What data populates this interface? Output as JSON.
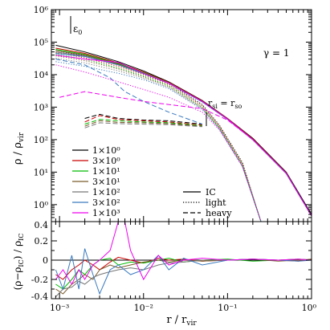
{
  "chart_data": [
    {
      "type": "line",
      "panel": "top",
      "xscale": "log",
      "yscale": "log",
      "xlim": [
        0.0008,
        1.0
      ],
      "ylim": [
        0.3,
        1000000
      ],
      "ylabel_main": "ρ / ρ",
      "ylabel_sub": "vir",
      "x_ticks": [
        "10⁻³",
        "10⁻²",
        "10⁻¹",
        "10⁰"
      ],
      "y_ticks": [
        "10⁰",
        "10¹",
        "10²",
        "10³",
        "10⁴",
        "10⁵",
        "10⁶"
      ],
      "annotations": {
        "epsilon": "ε",
        "epsilon_sub": "0",
        "gamma": "γ = 1",
        "r_si_main": "r",
        "r_si_sub": "si",
        "r_so_eq": " = r",
        "r_so_sub": "so"
      },
      "legend_series": [
        {
          "label": "1×10⁰",
          "color": "#000000"
        },
        {
          "label": "3×10⁰",
          "color": "#cc0000"
        },
        {
          "label": "1×10¹",
          "color": "#00bb00"
        },
        {
          "label": "3×10¹",
          "color": "#7a5a2a"
        },
        {
          "label": "1×10²",
          "color": "#777777"
        },
        {
          "label": "3×10²",
          "color": "#3a7abf"
        },
        {
          "label": "1×10³",
          "color": "#ee00ee"
        }
      ],
      "legend_styles": [
        {
          "label": "IC",
          "dash": "solid"
        },
        {
          "label": "light",
          "dash": "dotted"
        },
        {
          "label": "heavy",
          "dash": "dashed"
        }
      ],
      "series": [
        {
          "name": "1×10⁰",
          "style": "solid",
          "color": "#000000",
          "x": [
            0.0009,
            0.002,
            0.005,
            0.01,
            0.02,
            0.05,
            0.1,
            0.2,
            0.5,
            1.0
          ],
          "y": [
            80000,
            50000,
            25000,
            13000,
            6000,
            1600,
            450,
            110,
            10,
            0.5
          ]
        },
        {
          "name": "1×10⁰",
          "style": "dotted",
          "color": "#000000",
          "x": [
            0.0009,
            0.002,
            0.005,
            0.01,
            0.02,
            0.05,
            0.08,
            0.15,
            0.25
          ],
          "y": [
            55000,
            38000,
            20000,
            11000,
            5500,
            1200,
            280,
            20,
            0.3
          ]
        },
        {
          "name": "1×10⁰",
          "style": "dashed",
          "color": "#000000",
          "x": [
            0.002,
            0.003,
            0.005,
            0.01,
            0.02,
            0.05
          ],
          "y": [
            450,
            600,
            450,
            400,
            380,
            300
          ]
        },
        {
          "name": "3×10⁰",
          "style": "solid",
          "color": "#cc0000",
          "x": [
            0.0009,
            0.002,
            0.005,
            0.01,
            0.02,
            0.05,
            0.1,
            0.2,
            0.5,
            1.0
          ],
          "y": [
            65000,
            45000,
            23000,
            12000,
            5800,
            1550,
            440,
            105,
            9.5,
            0.45
          ]
        },
        {
          "name": "3×10⁰",
          "style": "dotted",
          "color": "#cc0000",
          "x": [
            0.0009,
            0.002,
            0.005,
            0.01,
            0.02,
            0.05,
            0.08,
            0.15,
            0.25
          ],
          "y": [
            48000,
            33000,
            18000,
            10000,
            5000,
            1100,
            260,
            18,
            0.3
          ]
        },
        {
          "name": "3×10⁰",
          "style": "dashed",
          "color": "#cc0000",
          "x": [
            0.002,
            0.003,
            0.005,
            0.01,
            0.02,
            0.05
          ],
          "y": [
            350,
            550,
            420,
            380,
            350,
            280
          ]
        },
        {
          "name": "1×10¹",
          "style": "solid",
          "color": "#00bb00",
          "x": [
            0.0009,
            0.002,
            0.005,
            0.01,
            0.02,
            0.05,
            0.1,
            0.2,
            0.5,
            1.0
          ],
          "y": [
            60000,
            42000,
            22000,
            11500,
            5600,
            1500,
            430,
            100,
            9.2,
            0.45
          ]
        },
        {
          "name": "1×10¹",
          "style": "dotted",
          "color": "#00bb00",
          "x": [
            0.0009,
            0.002,
            0.005,
            0.01,
            0.02,
            0.05,
            0.08,
            0.15,
            0.25
          ],
          "y": [
            42000,
            30000,
            16000,
            9000,
            4600,
            1000,
            240,
            17,
            0.3
          ]
        },
        {
          "name": "1×10¹",
          "style": "dashed",
          "color": "#00bb00",
          "x": [
            0.002,
            0.003,
            0.005,
            0.01,
            0.02,
            0.05
          ],
          "y": [
            300,
            420,
            380,
            350,
            330,
            270
          ]
        },
        {
          "name": "3×10¹",
          "style": "solid",
          "color": "#7a5a2a",
          "x": [
            0.0009,
            0.002,
            0.005,
            0.01,
            0.02,
            0.05,
            0.1,
            0.2,
            0.5,
            1.0
          ],
          "y": [
            55000,
            40000,
            21000,
            11000,
            5500,
            1480,
            425,
            100,
            9.0,
            0.45
          ]
        },
        {
          "name": "3×10¹",
          "style": "dotted",
          "color": "#7a5a2a",
          "x": [
            0.0009,
            0.002,
            0.005,
            0.01,
            0.02,
            0.05,
            0.08,
            0.15,
            0.25
          ],
          "y": [
            38000,
            27000,
            15000,
            8500,
            4300,
            950,
            230,
            16,
            0.3
          ]
        },
        {
          "name": "3×10¹",
          "style": "dashed",
          "color": "#7a5a2a",
          "x": [
            0.002,
            0.003,
            0.005,
            0.01,
            0.02,
            0.05
          ],
          "y": [
            260,
            380,
            340,
            330,
            310,
            260
          ]
        },
        {
          "name": "1×10²",
          "style": "solid",
          "color": "#777777",
          "x": [
            0.0009,
            0.002,
            0.005,
            0.01,
            0.02,
            0.05,
            0.1,
            0.2,
            0.5,
            1.0
          ],
          "y": [
            50000,
            37000,
            20000,
            10800,
            5400,
            1460,
            420,
            98,
            9.0,
            0.45
          ]
        },
        {
          "name": "1×10²",
          "style": "dotted",
          "color": "#777777",
          "x": [
            0.0009,
            0.002,
            0.005,
            0.01,
            0.02,
            0.05,
            0.08,
            0.15,
            0.25
          ],
          "y": [
            32000,
            23000,
            13000,
            7800,
            4000,
            900,
            220,
            15,
            0.3
          ]
        },
        {
          "name": "1×10²",
          "style": "dashed",
          "color": "#777777",
          "x": [
            0.002,
            0.003,
            0.005,
            0.01,
            0.02,
            0.05
          ],
          "y": [
            230,
            330,
            310,
            300,
            290,
            250
          ]
        },
        {
          "name": "3×10²",
          "style": "solid",
          "color": "#3a7abf",
          "x": [
            0.0009,
            0.002,
            0.005,
            0.01,
            0.02,
            0.05,
            0.1,
            0.2,
            0.5,
            1.0
          ],
          "y": [
            45000,
            36000,
            20000,
            10700,
            5400,
            1450,
            420,
            98,
            9.0,
            0.45
          ]
        },
        {
          "name": "3×10²",
          "style": "dotted",
          "color": "#3a7abf",
          "x": [
            0.0009,
            0.002,
            0.005,
            0.01,
            0.02,
            0.05,
            0.08,
            0.15,
            0.25
          ],
          "y": [
            25000,
            18000,
            11000,
            7000,
            3700,
            850,
            210,
            15,
            0.3
          ]
        },
        {
          "name": "3×10²",
          "style": "dashed",
          "color": "#3a7abf",
          "x": [
            0.0009,
            0.002,
            0.004,
            0.006,
            0.01,
            0.02,
            0.05
          ],
          "y": [
            30000,
            20000,
            8000,
            3000,
            1500,
            700,
            300
          ]
        },
        {
          "name": "1×10³",
          "style": "solid",
          "color": "#ee00ee",
          "x": [
            0.0009,
            0.002,
            0.005,
            0.01,
            0.02,
            0.05,
            0.1,
            0.2,
            0.5,
            1.0
          ],
          "y": [
            40000,
            30000,
            24000,
            11000,
            5500,
            1500,
            430,
            100,
            9.2,
            0.45
          ]
        },
        {
          "name": "1×10³",
          "style": "dotted",
          "color": "#ee00ee",
          "x": [
            0.0009,
            0.002,
            0.005,
            0.01,
            0.02,
            0.05,
            0.08,
            0.15,
            0.25
          ],
          "y": [
            20000,
            12000,
            6000,
            3500,
            2000,
            700,
            200,
            15,
            0.3
          ]
        },
        {
          "name": "1×10³",
          "style": "dashed",
          "color": "#ee00ee",
          "x": [
            0.001,
            0.002,
            0.003,
            0.005,
            0.01,
            0.02,
            0.05,
            0.1,
            0.2
          ],
          "y": [
            2000,
            3000,
            2500,
            2000,
            1500,
            1200,
            900,
            400,
            100
          ]
        }
      ]
    },
    {
      "type": "line",
      "panel": "bottom",
      "xscale": "log",
      "xlim": [
        0.0008,
        1.0
      ],
      "ylim": [
        -0.4,
        0.4
      ],
      "xlabel_main": "r / r",
      "xlabel_sub": "vir",
      "ylabel_main": "(ρ−ρ",
      "ylabel_sub": "IC",
      "ylabel_rest": ") / ρ",
      "ylabel_sub2": "IC",
      "x_ticks": [
        "10⁻³",
        "10⁻²",
        "10⁻¹",
        "10⁰"
      ],
      "y_ticks": [
        "-0.4",
        "-0.2",
        "0",
        "0.2",
        "0.4"
      ],
      "series": [
        {
          "name": "3×10⁰",
          "color": "#cc0000",
          "x": [
            0.0009,
            0.0011,
            0.0014,
            0.0017,
            0.002,
            0.0025,
            0.003,
            0.004,
            0.005,
            0.007,
            0.01,
            0.015,
            0.02,
            0.03,
            0.05,
            0.1,
            0.2,
            0.4,
            0.7,
            1.0
          ],
          "y": [
            -0.15,
            -0.2,
            -0.1,
            -0.05,
            0.0,
            -0.05,
            -0.1,
            -0.02,
            0.03,
            0.0,
            -0.03,
            0.02,
            0.0,
            0.01,
            -0.01,
            0.0,
            0.01,
            0.0,
            -0.01,
            0.01
          ]
        },
        {
          "name": "1×10¹",
          "color": "#00bb00",
          "x": [
            0.0009,
            0.0011,
            0.0014,
            0.0017,
            0.002,
            0.0025,
            0.003,
            0.004,
            0.005,
            0.007,
            0.01,
            0.015,
            0.02,
            0.03,
            0.05,
            0.1,
            0.2,
            0.4,
            0.7,
            1.0
          ],
          "y": [
            -0.25,
            -0.3,
            -0.2,
            -0.1,
            -0.15,
            -0.05,
            0.0,
            0.02,
            -0.05,
            -0.02,
            -0.03,
            0.0,
            0.02,
            -0.02,
            0.0,
            0.01,
            -0.01,
            0.0,
            0.01,
            0.0
          ]
        },
        {
          "name": "3×10¹",
          "color": "#7a5a2a",
          "x": [
            0.0009,
            0.0011,
            0.0014,
            0.0017,
            0.002,
            0.0025,
            0.003,
            0.004,
            0.005,
            0.007,
            0.01,
            0.015,
            0.02,
            0.03,
            0.05,
            0.1,
            0.2,
            0.4,
            0.7,
            1.0
          ],
          "y": [
            -0.3,
            -0.35,
            -0.25,
            -0.2,
            -0.15,
            -0.2,
            -0.1,
            -0.05,
            -0.08,
            -0.05,
            -0.02,
            0.0,
            -0.02,
            0.0,
            -0.01,
            0.0,
            0.01,
            -0.01,
            0.0,
            0.01
          ]
        },
        {
          "name": "1×10²",
          "color": "#777777",
          "x": [
            0.0009,
            0.0011,
            0.0014,
            0.0017,
            0.002,
            0.0025,
            0.003,
            0.004,
            0.005,
            0.007,
            0.01,
            0.015,
            0.02,
            0.03,
            0.05,
            0.1,
            0.2,
            0.4,
            0.7,
            1.0
          ],
          "y": [
            -0.38,
            -0.3,
            -0.28,
            -0.22,
            -0.25,
            -0.18,
            -0.15,
            -0.12,
            -0.1,
            -0.08,
            -0.1,
            -0.05,
            -0.03,
            -0.02,
            0.0,
            0.0,
            0.01,
            0.0,
            0.01,
            0.0
          ]
        },
        {
          "name": "3×10²",
          "color": "#3a7abf",
          "x": [
            0.0009,
            0.0011,
            0.0014,
            0.0017,
            0.002,
            0.0025,
            0.003,
            0.004,
            0.005,
            0.007,
            0.01,
            0.015,
            0.02,
            0.03,
            0.05,
            0.1,
            0.2,
            0.4,
            0.7,
            1.0
          ],
          "y": [
            -0.1,
            -0.3,
            0.05,
            -0.3,
            0.12,
            -0.15,
            -0.35,
            -0.1,
            -0.05,
            -0.15,
            -0.1,
            0.05,
            -0.1,
            0.02,
            -0.05,
            0.0,
            0.01,
            0.0,
            -0.01,
            0.0
          ]
        },
        {
          "name": "1×10³",
          "color": "#ee00ee",
          "x": [
            0.0009,
            0.0011,
            0.0014,
            0.0017,
            0.002,
            0.0025,
            0.003,
            0.004,
            0.005,
            0.006,
            0.007,
            0.01,
            0.015,
            0.02,
            0.03,
            0.05,
            0.1,
            0.2,
            0.4,
            0.7,
            1.0
          ],
          "y": [
            -0.2,
            -0.1,
            -0.25,
            -0.1,
            -0.2,
            -0.05,
            0.0,
            0.1,
            0.4,
            0.4,
            0.1,
            -0.2,
            0.05,
            -0.05,
            0.0,
            0.02,
            0.0,
            0.01,
            0.0,
            0.01,
            0.0
          ]
        }
      ]
    }
  ]
}
